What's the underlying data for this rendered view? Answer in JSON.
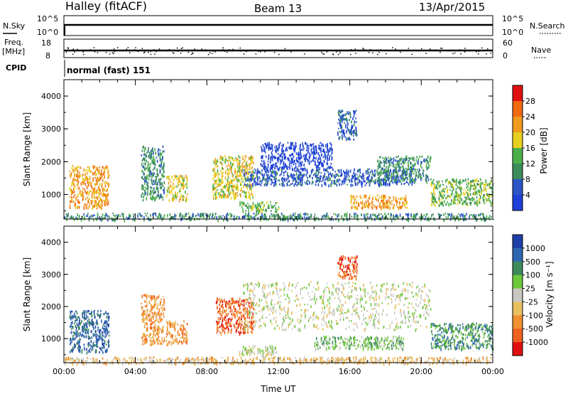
{
  "header": {
    "station": "Halley (fitACF)",
    "beam": "Beam 13",
    "date": "13/Apr/2015"
  },
  "strips": {
    "nsky_label": "N.Sky",
    "nsky_ticks": [
      "10^5",
      "10^0"
    ],
    "nsearch_label": "N.Search",
    "nsearch_ticks": [
      "10^5",
      "10^0"
    ],
    "freq_label": "Freq.",
    "freq_unit": "[MHz]",
    "freq_ticks": [
      "18",
      "8"
    ],
    "nave_label": "Nave",
    "nave_ticks": [
      "60",
      "0"
    ],
    "cpid_label": "CPID",
    "cpid_mode": "normal (fast) 151"
  },
  "colors": {
    "power": [
      "#1e3fd8",
      "#2b55c4",
      "#3c8c5c",
      "#4bb04b",
      "#e8d020",
      "#f09a20",
      "#f06a10",
      "#e01010"
    ],
    "velocity": [
      "#1f3fa8",
      "#2f66b0",
      "#3d8a5c",
      "#6ec83c",
      "#c8c8c0",
      "#e8c060",
      "#f09030",
      "#f06020",
      "#e01010"
    ]
  },
  "chart_data": [
    {
      "type": "heatmap",
      "name_panel": "power",
      "ylabel": "Slant Range [km]",
      "xlabel": "Time UT",
      "x_ticks": [
        "00:00",
        "04:00",
        "08:00",
        "12:00",
        "16:00",
        "20:00",
        "00:00"
      ],
      "xlim": [
        0,
        24
      ],
      "y_ticks": [
        "1000",
        "2000",
        "3000",
        "4000"
      ],
      "ylim": [
        250,
        4500
      ],
      "colorbar_label": "Power [dB]",
      "colorbar_ticks": [
        "4",
        "8",
        "12",
        "16",
        "20",
        "24",
        "28"
      ],
      "regions": [
        {
          "x0": 0.3,
          "x1": 2.5,
          "y0": 600,
          "y1": 1900,
          "level": 5
        },
        {
          "x0": 4.3,
          "x1": 5.6,
          "y0": 850,
          "y1": 2500,
          "level": 2
        },
        {
          "x0": 5.7,
          "x1": 6.9,
          "y0": 850,
          "y1": 1600,
          "level": 4
        },
        {
          "x0": 8.3,
          "x1": 10.6,
          "y0": 900,
          "y1": 2200,
          "level": 4
        },
        {
          "x0": 9.8,
          "x1": 12.0,
          "y0": 500,
          "y1": 800,
          "level": 3
        },
        {
          "x0": 10.0,
          "x1": 19.5,
          "y0": 1300,
          "y1": 1800,
          "level": 1
        },
        {
          "x0": 11.0,
          "x1": 15.0,
          "y0": 1800,
          "y1": 2600,
          "level": 0
        },
        {
          "x0": 15.3,
          "x1": 16.4,
          "y0": 2700,
          "y1": 3600,
          "level": 1
        },
        {
          "x0": 16.0,
          "x1": 19.2,
          "y0": 600,
          "y1": 1000,
          "level": 5
        },
        {
          "x0": 17.5,
          "x1": 20.5,
          "y0": 1400,
          "y1": 2200,
          "level": 2
        },
        {
          "x0": 20.5,
          "x1": 24.0,
          "y0": 700,
          "y1": 1500,
          "level": 3
        },
        {
          "x0": 0.0,
          "x1": 24.0,
          "y0": 250,
          "y1": 450,
          "level": 2
        }
      ]
    },
    {
      "type": "heatmap",
      "name_panel": "velocity",
      "ylabel": "Slant Range [km]",
      "xlabel": "Time UT",
      "x_ticks": [
        "00:00",
        "04:00",
        "08:00",
        "12:00",
        "16:00",
        "20:00",
        "00:00"
      ],
      "xlim": [
        0,
        24
      ],
      "y_ticks": [
        "1000",
        "2000",
        "3000",
        "4000"
      ],
      "ylim": [
        250,
        4500
      ],
      "colorbar_label": "Velocity [m s⁻¹]",
      "colorbar_ticks": [
        "1000",
        "500",
        "100",
        "25",
        "-25",
        "-100",
        "-500",
        "-1000"
      ],
      "regions": [
        {
          "x0": 0.3,
          "x1": 2.5,
          "y0": 600,
          "y1": 1900,
          "level": 1
        },
        {
          "x0": 4.3,
          "x1": 5.6,
          "y0": 850,
          "y1": 2400,
          "level": 6
        },
        {
          "x0": 5.7,
          "x1": 6.9,
          "y0": 850,
          "y1": 1600,
          "level": 6
        },
        {
          "x0": 8.5,
          "x1": 10.6,
          "y0": 1200,
          "y1": 2300,
          "level": 7
        },
        {
          "x0": 9.8,
          "x1": 12.0,
          "y0": 500,
          "y1": 800,
          "level": 4
        },
        {
          "x0": 10.0,
          "x1": 20.5,
          "y0": 1300,
          "y1": 2800,
          "level": 4
        },
        {
          "x0": 15.3,
          "x1": 16.4,
          "y0": 2900,
          "y1": 3600,
          "level": 7
        },
        {
          "x0": 14.0,
          "x1": 19.0,
          "y0": 700,
          "y1": 1100,
          "level": 3
        },
        {
          "x0": 20.5,
          "x1": 24.0,
          "y0": 700,
          "y1": 1500,
          "level": 2
        },
        {
          "x0": 0.0,
          "x1": 24.0,
          "y0": 250,
          "y1": 450,
          "level": 5
        }
      ]
    }
  ]
}
